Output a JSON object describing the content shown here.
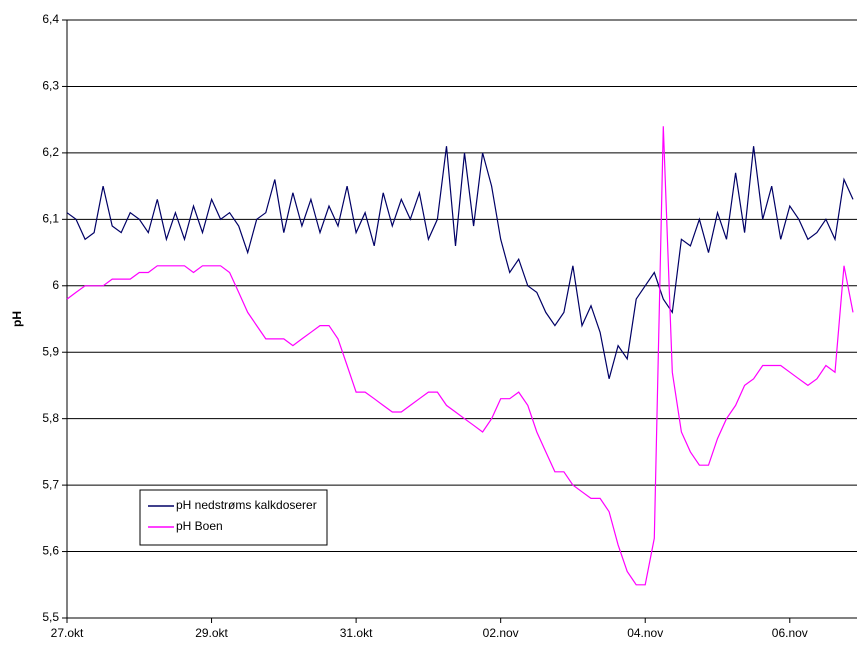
{
  "chart_data": {
    "type": "line",
    "y_label": "pH",
    "x": [
      0,
      0.125,
      0.25,
      0.375,
      0.5,
      0.625,
      0.75,
      0.875,
      1,
      1.125,
      1.25,
      1.375,
      1.5,
      1.625,
      1.75,
      1.875,
      2,
      2.125,
      2.25,
      2.375,
      2.5,
      2.625,
      2.75,
      2.875,
      3,
      3.125,
      3.25,
      3.375,
      3.5,
      3.625,
      3.75,
      3.875,
      4,
      4.125,
      4.25,
      4.375,
      4.5,
      4.625,
      4.75,
      4.875,
      5,
      5.125,
      5.25,
      5.375,
      5.5,
      5.625,
      5.75,
      5.875,
      6,
      6.125,
      6.25,
      6.375,
      6.5,
      6.625,
      6.75,
      6.875,
      7,
      7.125,
      7.25,
      7.375,
      7.5,
      7.625,
      7.75,
      7.875,
      8,
      8.125,
      8.25,
      8.375,
      8.5,
      8.625,
      8.75,
      8.875,
      9,
      9.125,
      9.25,
      9.375,
      9.5,
      9.625,
      9.75,
      9.875,
      10,
      10.125,
      10.25,
      10.375,
      10.5,
      10.625,
      10.75,
      10.875
    ],
    "series": [
      {
        "name": "pH nedstrøms kalkdoserer",
        "color": "#000066",
        "values": [
          6.11,
          6.1,
          6.07,
          6.08,
          6.15,
          6.09,
          6.08,
          6.11,
          6.1,
          6.08,
          6.13,
          6.07,
          6.11,
          6.07,
          6.12,
          6.08,
          6.13,
          6.1,
          6.11,
          6.09,
          6.05,
          6.1,
          6.11,
          6.16,
          6.08,
          6.14,
          6.09,
          6.13,
          6.08,
          6.12,
          6.09,
          6.15,
          6.08,
          6.11,
          6.06,
          6.14,
          6.09,
          6.13,
          6.1,
          6.14,
          6.07,
          6.1,
          6.21,
          6.06,
          6.2,
          6.09,
          6.2,
          6.15,
          6.07,
          6.02,
          6.04,
          6.0,
          5.99,
          5.96,
          5.94,
          5.96,
          6.03,
          5.94,
          5.97,
          5.93,
          5.86,
          5.91,
          5.89,
          5.98,
          6.0,
          6.02,
          5.98,
          5.96,
          6.07,
          6.06,
          6.1,
          6.05,
          6.11,
          6.07,
          6.17,
          6.08,
          6.21,
          6.1,
          6.15,
          6.07,
          6.12,
          6.1,
          6.07,
          6.08,
          6.1,
          6.07,
          6.16,
          6.13
        ]
      },
      {
        "name": "pH Boen",
        "color": "#ff00ff",
        "values": [
          5.98,
          5.99,
          6.0,
          6.0,
          6.0,
          6.01,
          6.01,
          6.01,
          6.02,
          6.02,
          6.03,
          6.03,
          6.03,
          6.03,
          6.02,
          6.03,
          6.03,
          6.03,
          6.02,
          5.99,
          5.96,
          5.94,
          5.92,
          5.92,
          5.92,
          5.91,
          5.92,
          5.93,
          5.94,
          5.94,
          5.92,
          5.88,
          5.84,
          5.84,
          5.83,
          5.82,
          5.81,
          5.81,
          5.82,
          5.83,
          5.84,
          5.84,
          5.82,
          5.81,
          5.8,
          5.79,
          5.78,
          5.8,
          5.83,
          5.83,
          5.84,
          5.82,
          5.78,
          5.75,
          5.72,
          5.72,
          5.7,
          5.69,
          5.68,
          5.68,
          5.66,
          5.61,
          5.57,
          5.55,
          5.55,
          5.62,
          6.24,
          5.87,
          5.78,
          5.75,
          5.73,
          5.73,
          5.77,
          5.8,
          5.82,
          5.85,
          5.86,
          5.88,
          5.88,
          5.88,
          5.87,
          5.86,
          5.85,
          5.86,
          5.88,
          5.87,
          6.03,
          5.96
        ]
      }
    ],
    "xlim": [
      0,
      10.93
    ],
    "xticks": [
      {
        "value": 0,
        "label": "27.okt"
      },
      {
        "value": 2,
        "label": "29.okt"
      },
      {
        "value": 4,
        "label": "31.okt"
      },
      {
        "value": 6,
        "label": "02.nov"
      },
      {
        "value": 8,
        "label": "04.nov"
      },
      {
        "value": 10,
        "label": "06.nov"
      }
    ],
    "ylim": [
      5.5,
      6.4
    ],
    "yticks": [
      {
        "value": 5.5,
        "label": "5,5"
      },
      {
        "value": 5.6,
        "label": "5,6"
      },
      {
        "value": 5.7,
        "label": "5,7"
      },
      {
        "value": 5.8,
        "label": "5,8"
      },
      {
        "value": 5.9,
        "label": "5,9"
      },
      6,
      {
        "value": 6.1,
        "label": "6,1"
      },
      {
        "value": 6.2,
        "label": "6,2"
      },
      {
        "value": 6.3,
        "label": "6,3"
      },
      {
        "value": 6.4,
        "label": "6,4"
      }
    ],
    "grid": true,
    "legend": "lower-left"
  }
}
